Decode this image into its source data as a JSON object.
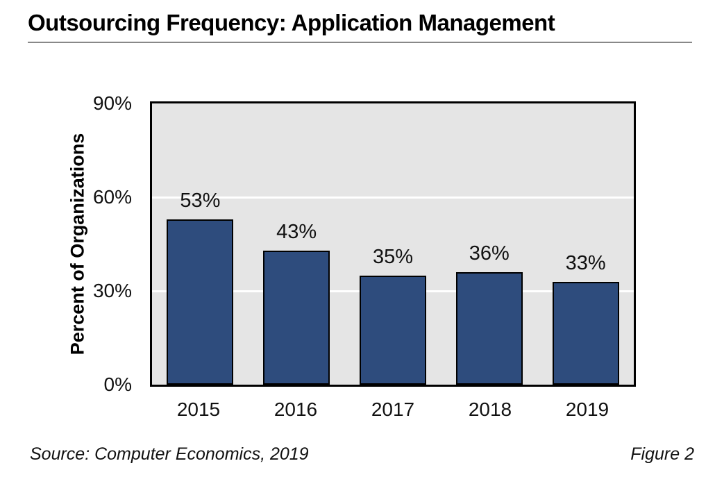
{
  "title": "Outsourcing Frequency: Application Management",
  "footer": {
    "source": "Source: Computer Economics, 2019",
    "figure_label": "Figure 2"
  },
  "colors": {
    "bar": "#2E4C7D",
    "bar_border": "#000000",
    "plot_bg": "#E5E5E5",
    "plot_border": "#000000",
    "gridline": "#FFFFFF",
    "title_rule": "#888888",
    "text": "#111111"
  },
  "chart_data": {
    "type": "bar",
    "categories": [
      "2015",
      "2016",
      "2017",
      "2018",
      "2019"
    ],
    "values": [
      53,
      43,
      35,
      36,
      33
    ],
    "data_labels": [
      "53%",
      "43%",
      "35%",
      "36%",
      "33%"
    ],
    "title": "Outsourcing Frequency: Application Management",
    "xlabel": "",
    "ylabel": "Percent of Organizations",
    "ylim": [
      0,
      90
    ],
    "yticks": [
      {
        "value": 0,
        "label": "0%"
      },
      {
        "value": 30,
        "label": "30%"
      },
      {
        "value": 60,
        "label": "60%"
      },
      {
        "value": 90,
        "label": "90%"
      }
    ],
    "gridlines": [
      30,
      60
    ],
    "grid": "horizontal-white",
    "legend": "none"
  }
}
